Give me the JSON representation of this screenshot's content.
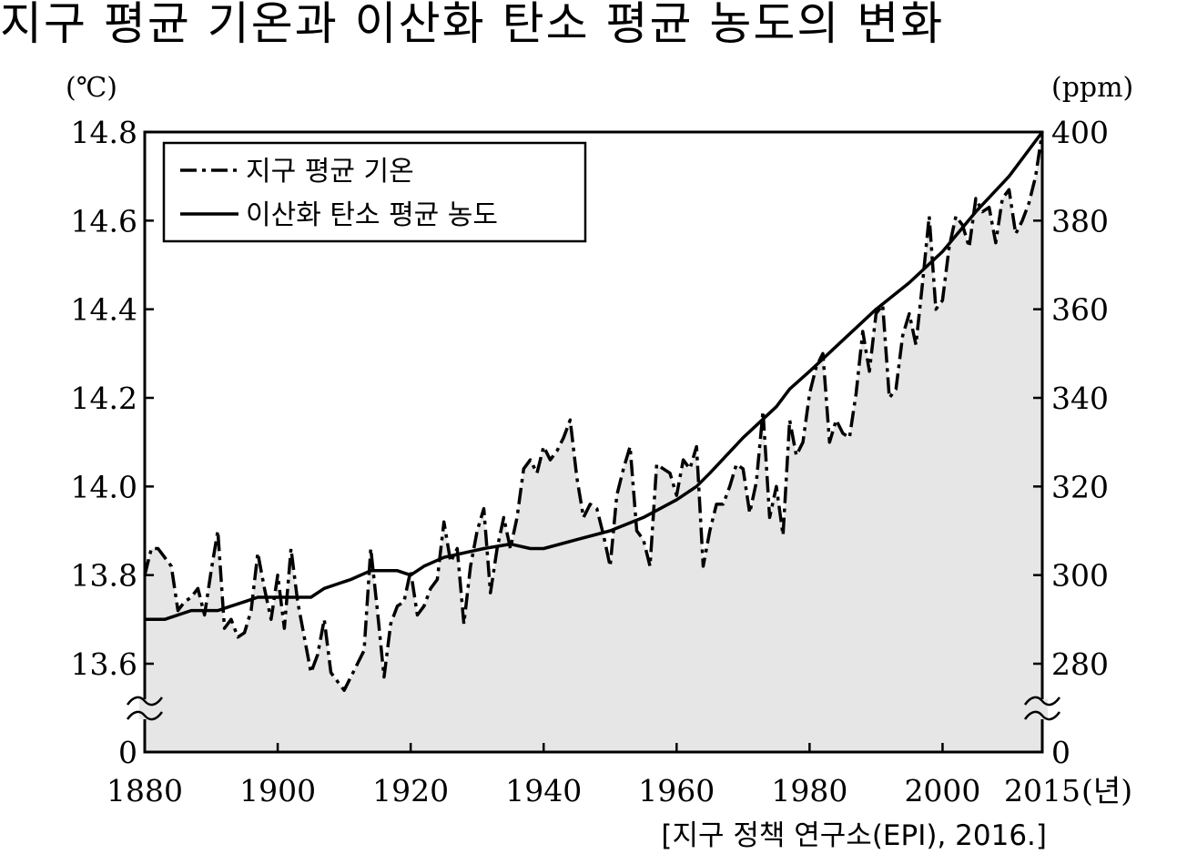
{
  "chart_data": {
    "type": "line",
    "title": "지구 평균 기온과 이산화 탄소 평균 농도의 변화",
    "left_axis_unit": "(℃)",
    "right_axis_unit": "(ppm)",
    "x_unit_label": "(년)",
    "source": "[지구 정책 연구소(EPI), 2016.]",
    "x_ticks": [
      "1880",
      "1900",
      "1920",
      "1940",
      "1960",
      "1980",
      "2000",
      "2015"
    ],
    "y_left_ticks": [
      "0",
      "13.6",
      "13.8",
      "14.0",
      "14.2",
      "14.4",
      "14.6",
      "14.8"
    ],
    "y_right_ticks": [
      "0",
      "280",
      "300",
      "320",
      "340",
      "360",
      "380",
      "400"
    ],
    "xlim": [
      1880,
      2015
    ],
    "ylim_left": [
      13.6,
      14.8
    ],
    "ylim_right": [
      280,
      400
    ],
    "axis_break": "both y axes broken between 0 and the first tick",
    "legend_position": "top-left",
    "grid": false,
    "series": [
      {
        "name": "지구 평균 기온",
        "axis": "left",
        "style": "dash-dot",
        "points": [
          [
            1880,
            13.8
          ],
          [
            1881,
            13.86
          ],
          [
            1882,
            13.86
          ],
          [
            1883,
            13.84
          ],
          [
            1884,
            13.82
          ],
          [
            1885,
            13.72
          ],
          [
            1886,
            13.74
          ],
          [
            1887,
            13.75
          ],
          [
            1888,
            13.77
          ],
          [
            1889,
            13.71
          ],
          [
            1890,
            13.81
          ],
          [
            1891,
            13.9
          ],
          [
            1892,
            13.68
          ],
          [
            1893,
            13.7
          ],
          [
            1894,
            13.66
          ],
          [
            1895,
            13.67
          ],
          [
            1896,
            13.72
          ],
          [
            1897,
            13.85
          ],
          [
            1898,
            13.77
          ],
          [
            1899,
            13.7
          ],
          [
            1900,
            13.8
          ],
          [
            1901,
            13.68
          ],
          [
            1902,
            13.86
          ],
          [
            1903,
            13.74
          ],
          [
            1904,
            13.66
          ],
          [
            1905,
            13.58
          ],
          [
            1906,
            13.62
          ],
          [
            1907,
            13.7
          ],
          [
            1908,
            13.58
          ],
          [
            1909,
            13.56
          ],
          [
            1910,
            13.54
          ],
          [
            1911,
            13.57
          ],
          [
            1912,
            13.6
          ],
          [
            1913,
            13.63
          ],
          [
            1914,
            13.86
          ],
          [
            1915,
            13.72
          ],
          [
            1916,
            13.57
          ],
          [
            1917,
            13.69
          ],
          [
            1918,
            13.73
          ],
          [
            1919,
            13.74
          ],
          [
            1920,
            13.81
          ],
          [
            1921,
            13.71
          ],
          [
            1922,
            13.73
          ],
          [
            1923,
            13.77
          ],
          [
            1924,
            13.79
          ],
          [
            1925,
            13.92
          ],
          [
            1926,
            13.83
          ],
          [
            1927,
            13.86
          ],
          [
            1928,
            13.69
          ],
          [
            1929,
            13.82
          ],
          [
            1930,
            13.9
          ],
          [
            1931,
            13.95
          ],
          [
            1932,
            13.76
          ],
          [
            1933,
            13.86
          ],
          [
            1934,
            13.93
          ],
          [
            1935,
            13.86
          ],
          [
            1936,
            13.93
          ],
          [
            1937,
            14.04
          ],
          [
            1938,
            14.06
          ],
          [
            1939,
            14.03
          ],
          [
            1940,
            14.09
          ],
          [
            1941,
            14.06
          ],
          [
            1942,
            14.08
          ],
          [
            1943,
            14.11
          ],
          [
            1944,
            14.15
          ],
          [
            1945,
            14.02
          ],
          [
            1946,
            13.93
          ],
          [
            1947,
            13.96
          ],
          [
            1948,
            13.95
          ],
          [
            1949,
            13.89
          ],
          [
            1950,
            13.82
          ],
          [
            1951,
            13.98
          ],
          [
            1952,
            14.04
          ],
          [
            1953,
            14.09
          ],
          [
            1954,
            13.9
          ],
          [
            1955,
            13.88
          ],
          [
            1956,
            13.82
          ],
          [
            1957,
            14.05
          ],
          [
            1958,
            14.04
          ],
          [
            1959,
            14.03
          ],
          [
            1960,
            13.98
          ],
          [
            1961,
            14.06
          ],
          [
            1962,
            14.04
          ],
          [
            1963,
            14.09
          ],
          [
            1964,
            13.82
          ],
          [
            1965,
            13.9
          ],
          [
            1966,
            13.96
          ],
          [
            1967,
            13.96
          ],
          [
            1968,
            14.0
          ],
          [
            1969,
            14.05
          ],
          [
            1970,
            14.04
          ],
          [
            1971,
            13.94
          ],
          [
            1972,
            14.01
          ],
          [
            1973,
            14.17
          ],
          [
            1974,
            13.93
          ],
          [
            1975,
            14.0
          ],
          [
            1976,
            13.89
          ],
          [
            1977,
            14.15
          ],
          [
            1978,
            14.07
          ],
          [
            1979,
            14.1
          ],
          [
            1980,
            14.21
          ],
          [
            1981,
            14.27
          ],
          [
            1982,
            14.3
          ],
          [
            1983,
            14.1
          ],
          [
            1984,
            14.15
          ],
          [
            1985,
            14.12
          ],
          [
            1986,
            14.11
          ],
          [
            1987,
            14.21
          ],
          [
            1988,
            14.35
          ],
          [
            1989,
            14.26
          ],
          [
            1990,
            14.39
          ],
          [
            1991,
            14.41
          ],
          [
            1992,
            14.2
          ],
          [
            1993,
            14.22
          ],
          [
            1994,
            14.34
          ],
          [
            1995,
            14.39
          ],
          [
            1996,
            14.32
          ],
          [
            1997,
            14.46
          ],
          [
            1998,
            14.61
          ],
          [
            1999,
            14.4
          ],
          [
            2000,
            14.42
          ],
          [
            2001,
            14.54
          ],
          [
            2002,
            14.61
          ],
          [
            2003,
            14.59
          ],
          [
            2004,
            14.54
          ],
          [
            2005,
            14.65
          ],
          [
            2006,
            14.62
          ],
          [
            2007,
            14.63
          ],
          [
            2008,
            14.55
          ],
          [
            2009,
            14.65
          ],
          [
            2010,
            14.67
          ],
          [
            2011,
            14.57
          ],
          [
            2012,
            14.6
          ],
          [
            2013,
            14.64
          ],
          [
            2014,
            14.7
          ],
          [
            2015,
            14.8
          ]
        ]
      },
      {
        "name": "이산화 탄소 평균 농도",
        "axis": "right",
        "style": "solid",
        "points": [
          [
            1880,
            290
          ],
          [
            1883,
            290
          ],
          [
            1887,
            292
          ],
          [
            1891,
            292
          ],
          [
            1893,
            293
          ],
          [
            1895,
            294
          ],
          [
            1897,
            295
          ],
          [
            1902,
            295
          ],
          [
            1905,
            295
          ],
          [
            1907,
            297
          ],
          [
            1909,
            298
          ],
          [
            1911,
            299
          ],
          [
            1914,
            301
          ],
          [
            1918,
            301
          ],
          [
            1920,
            300
          ],
          [
            1922,
            302
          ],
          [
            1925,
            304
          ],
          [
            1928,
            305
          ],
          [
            1931,
            306
          ],
          [
            1935,
            307
          ],
          [
            1938,
            306
          ],
          [
            1940,
            306
          ],
          [
            1945,
            308
          ],
          [
            1950,
            310
          ],
          [
            1955,
            313
          ],
          [
            1960,
            317
          ],
          [
            1963,
            320
          ],
          [
            1965,
            323
          ],
          [
            1970,
            331
          ],
          [
            1975,
            338
          ],
          [
            1977,
            342
          ],
          [
            1980,
            346
          ],
          [
            1985,
            353
          ],
          [
            1990,
            360
          ],
          [
            1995,
            366
          ],
          [
            2000,
            373
          ],
          [
            2005,
            382
          ],
          [
            2010,
            390
          ],
          [
            2015,
            400
          ]
        ]
      }
    ]
  }
}
